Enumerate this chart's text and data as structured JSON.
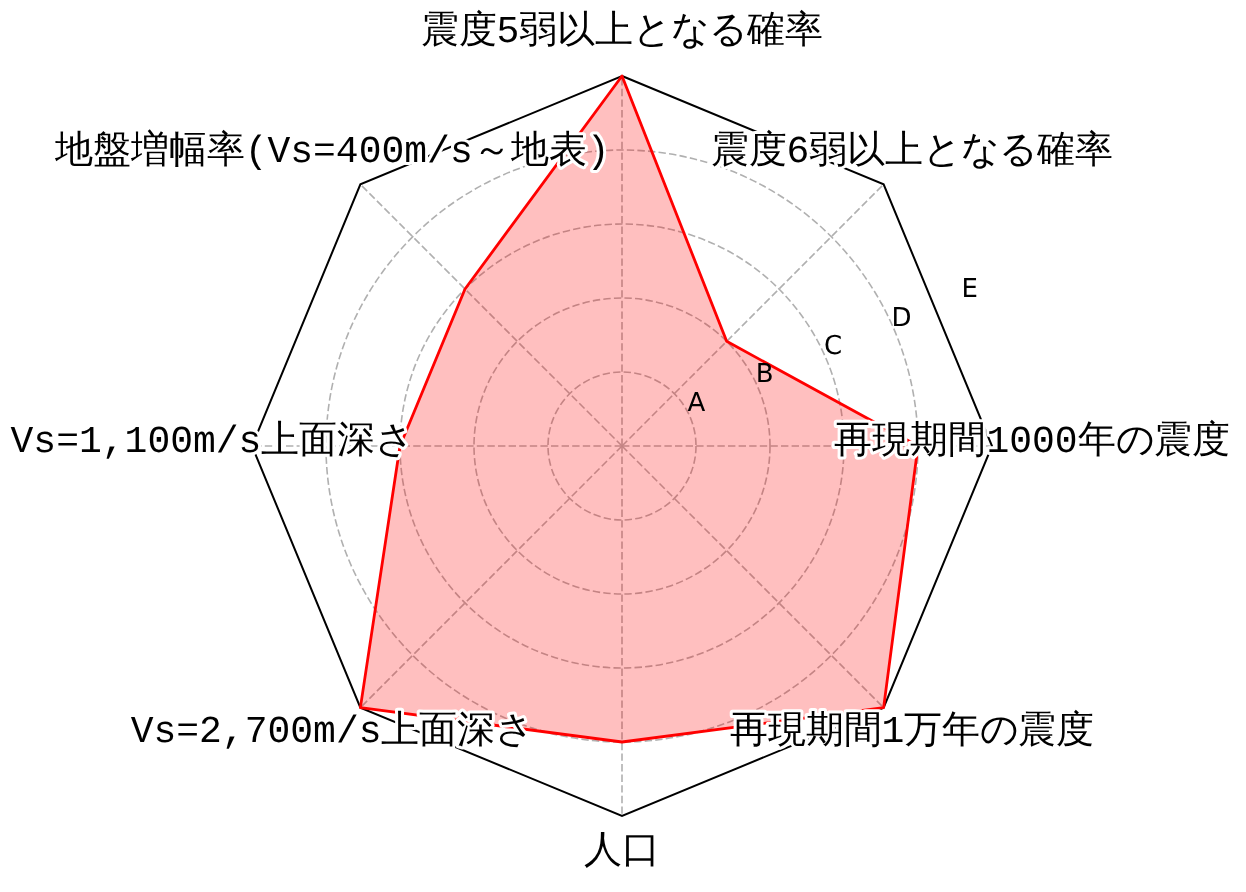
{
  "chart_data": {
    "type": "radar",
    "categories": [
      "震度5弱以上となる確率",
      "震度6弱以上となる確率",
      "再現期間1000年の震度",
      "再現期間1万年の震度",
      "人口",
      "Vs=2,700m/s上面深さ",
      "Vs=1,100m/s上面深さ",
      "地盤増幅率(Vs=400m/s～地表)"
    ],
    "series": [
      {
        "color": "#ff0000",
        "values": [
          5,
          2,
          4,
          5,
          4,
          5,
          3,
          3
        ]
      }
    ],
    "ylim": [
      0,
      5
    ],
    "yticks": [
      {
        "value": 1,
        "label": "A"
      },
      {
        "value": 2,
        "label": "B"
      },
      {
        "value": 3,
        "label": "C"
      },
      {
        "value": 4,
        "label": "D"
      },
      {
        "value": 5,
        "label": "E"
      }
    ],
    "grid": true
  }
}
